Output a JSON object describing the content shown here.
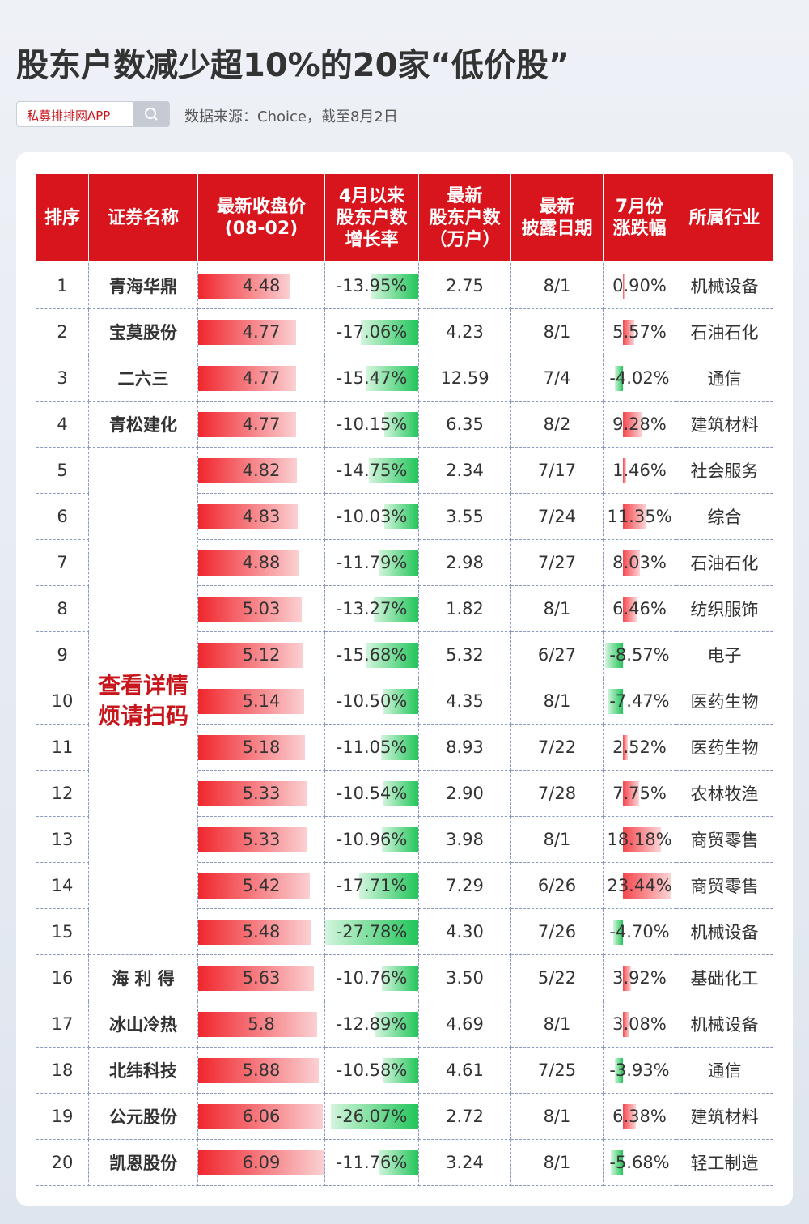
{
  "header": {
    "title": "股东户数减少超10%的20家“低价股”",
    "search_label": "私募排排网APP",
    "source": "数据来源：Choice，截至8月2日"
  },
  "table": {
    "columns": [
      [
        "排序"
      ],
      [
        "证券名称"
      ],
      [
        "最新收盘价",
        "(08-02)"
      ],
      [
        "4月以来",
        "股东户数",
        "增长率"
      ],
      [
        "最新",
        "股东户数",
        "（万户）"
      ],
      [
        "最新",
        "披露日期"
      ],
      [
        "7月份",
        "涨跌幅"
      ],
      [
        "所属行业"
      ]
    ],
    "notice": [
      "查看详情",
      "烦请扫码"
    ],
    "rows": [
      {
        "rank": "1",
        "name": "青海华鼎",
        "price": 4.48,
        "growth": {
          "value": -13.95,
          "label": "-13.95%"
        },
        "holders": "2.75",
        "date": "8/1",
        "july": {
          "value": 0.9,
          "label": "0.90%"
        },
        "industry": "机械设备"
      },
      {
        "rank": "2",
        "name": "宝莫股份",
        "price": 4.77,
        "growth": {
          "value": -17.06,
          "label": "-17.06%"
        },
        "holders": "4.23",
        "date": "8/1",
        "july": {
          "value": 5.57,
          "label": "5.57%"
        },
        "industry": "石油石化"
      },
      {
        "rank": "3",
        "name": "二六三",
        "price": 4.77,
        "growth": {
          "value": -15.47,
          "label": "-15.47%"
        },
        "holders": "12.59",
        "date": "7/4",
        "july": {
          "value": -4.02,
          "label": "-4.02%"
        },
        "industry": "通信"
      },
      {
        "rank": "4",
        "name": "青松建化",
        "price": 4.77,
        "growth": {
          "value": -10.15,
          "label": "-10.15%"
        },
        "holders": "6.35",
        "date": "8/2",
        "july": {
          "value": 9.28,
          "label": "9.28%"
        },
        "industry": "建筑材料"
      },
      {
        "rank": "5",
        "price": 4.82,
        "growth": {
          "value": -14.75,
          "label": "-14.75%"
        },
        "holders": "2.34",
        "date": "7/17",
        "july": {
          "value": 1.46,
          "label": "1.46%"
        },
        "industry": "社会服务"
      },
      {
        "rank": "6",
        "price": 4.83,
        "growth": {
          "value": -10.03,
          "label": "-10.03%"
        },
        "holders": "3.55",
        "date": "7/24",
        "july": {
          "value": 11.35,
          "label": "11.35%"
        },
        "industry": "综合"
      },
      {
        "rank": "7",
        "price": 4.88,
        "growth": {
          "value": -11.79,
          "label": "-11.79%"
        },
        "holders": "2.98",
        "date": "7/27",
        "july": {
          "value": 8.03,
          "label": "8.03%"
        },
        "industry": "石油石化"
      },
      {
        "rank": "8",
        "price": 5.03,
        "growth": {
          "value": -13.27,
          "label": "-13.27%"
        },
        "holders": "1.82",
        "date": "8/1",
        "july": {
          "value": 6.46,
          "label": "6.46%"
        },
        "industry": "纺织服饰"
      },
      {
        "rank": "9",
        "price": 5.12,
        "growth": {
          "value": -15.68,
          "label": "-15.68%"
        },
        "holders": "5.32",
        "date": "6/27",
        "july": {
          "value": -8.57,
          "label": "-8.57%"
        },
        "industry": "电子"
      },
      {
        "rank": "10",
        "price": 5.14,
        "growth": {
          "value": -10.5,
          "label": "-10.50%"
        },
        "holders": "4.35",
        "date": "8/1",
        "july": {
          "value": -7.47,
          "label": "-7.47%"
        },
        "industry": "医药生物"
      },
      {
        "rank": "11",
        "price": 5.18,
        "growth": {
          "value": -11.05,
          "label": "-11.05%"
        },
        "holders": "8.93",
        "date": "7/22",
        "july": {
          "value": 2.52,
          "label": "2.52%"
        },
        "industry": "医药生物"
      },
      {
        "rank": "12",
        "price": 5.33,
        "growth": {
          "value": -10.54,
          "label": "-10.54%"
        },
        "holders": "2.90",
        "date": "7/28",
        "july": {
          "value": 7.75,
          "label": "7.75%"
        },
        "industry": "农林牧渔"
      },
      {
        "rank": "13",
        "price": 5.33,
        "growth": {
          "value": -10.96,
          "label": "-10.96%"
        },
        "holders": "3.98",
        "date": "8/1",
        "july": {
          "value": 18.18,
          "label": "18.18%"
        },
        "industry": "商贸零售"
      },
      {
        "rank": "14",
        "price": 5.42,
        "growth": {
          "value": -17.71,
          "label": "-17.71%"
        },
        "holders": "7.29",
        "date": "6/26",
        "july": {
          "value": 23.44,
          "label": "23.44%"
        },
        "industry": "商贸零售"
      },
      {
        "rank": "15",
        "price": 5.48,
        "growth": {
          "value": -27.78,
          "label": "-27.78%"
        },
        "holders": "4.30",
        "date": "7/26",
        "july": {
          "value": -4.7,
          "label": "-4.70%"
        },
        "industry": "机械设备"
      },
      {
        "rank": "16",
        "name": "海 利 得",
        "price": 5.63,
        "growth": {
          "value": -10.76,
          "label": "-10.76%"
        },
        "holders": "3.50",
        "date": "5/22",
        "july": {
          "value": 3.92,
          "label": "3.92%"
        },
        "industry": "基础化工"
      },
      {
        "rank": "17",
        "name": "冰山冷热",
        "price": 5.8,
        "growth": {
          "value": -12.89,
          "label": "-12.89%"
        },
        "holders": "4.69",
        "date": "8/1",
        "july": {
          "value": 3.08,
          "label": "3.08%"
        },
        "industry": "机械设备"
      },
      {
        "rank": "18",
        "name": "北纬科技",
        "price": 5.88,
        "growth": {
          "value": -10.58,
          "label": "-10.58%"
        },
        "holders": "4.61",
        "date": "7/25",
        "july": {
          "value": -3.93,
          "label": "-3.93%"
        },
        "industry": "通信"
      },
      {
        "rank": "19",
        "name": "公元股份",
        "price": 6.06,
        "growth": {
          "value": -26.07,
          "label": "-26.07%"
        },
        "holders": "2.72",
        "date": "8/1",
        "july": {
          "value": 6.38,
          "label": "6.38%"
        },
        "industry": "建筑材料"
      },
      {
        "rank": "20",
        "name": "凯恩股份",
        "price": 6.09,
        "growth": {
          "value": -11.76,
          "label": "-11.76%"
        },
        "holders": "3.24",
        "date": "8/1",
        "july": {
          "value": -5.68,
          "label": "-5.68%"
        },
        "industry": "轻工制造"
      }
    ]
  }
}
